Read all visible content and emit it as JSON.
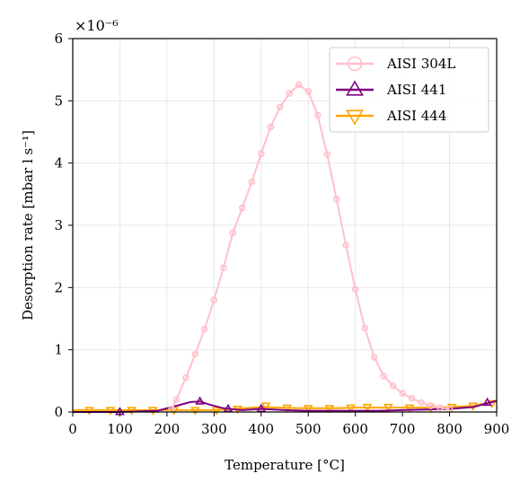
{
  "chart_data": {
    "type": "line",
    "title": "",
    "xlabel": "Temperature [°C]",
    "ylabel": "Desorption rate [mbar l s⁻¹]",
    "y_multiplier_label": "×10⁻⁶",
    "xlim": [
      0,
      900
    ],
    "ylim": [
      0,
      6
    ],
    "x_ticks": [
      0,
      100,
      200,
      300,
      400,
      500,
      600,
      700,
      800,
      900
    ],
    "y_ticks": [
      0,
      1,
      2,
      3,
      4,
      5,
      6
    ],
    "grid": true,
    "legend_position": "top-right",
    "series": [
      {
        "name": "AISI 304L",
        "color": "#ffc0cb",
        "marker": "circle",
        "x": [
          210,
          220,
          240,
          260,
          280,
          300,
          320,
          340,
          360,
          380,
          400,
          420,
          440,
          460,
          480,
          500,
          520,
          540,
          560,
          580,
          600,
          620,
          640,
          660,
          680,
          700,
          720,
          740,
          760,
          780,
          800
        ],
        "y": [
          0.05,
          0.2,
          0.55,
          0.93,
          1.33,
          1.8,
          2.32,
          2.88,
          3.28,
          3.7,
          4.15,
          4.58,
          4.9,
          5.12,
          5.26,
          5.15,
          4.77,
          4.14,
          3.42,
          2.68,
          1.97,
          1.35,
          0.88,
          0.58,
          0.42,
          0.3,
          0.22,
          0.15,
          0.1,
          0.07,
          0.05
        ]
      },
      {
        "name": "AISI 441",
        "color": "#800080",
        "marker": "triangle-up",
        "x": [
          0,
          100,
          180,
          220,
          250,
          270,
          290,
          320,
          360,
          400,
          450,
          500,
          550,
          600,
          650,
          700,
          750,
          800,
          850,
          880,
          900
        ],
        "y": [
          0.0,
          0.0,
          0.02,
          0.1,
          0.16,
          0.17,
          0.12,
          0.06,
          0.03,
          0.05,
          0.03,
          0.02,
          0.02,
          0.02,
          0.02,
          0.03,
          0.04,
          0.05,
          0.08,
          0.14,
          0.18
        ],
        "marker_x": [
          100,
          270,
          330,
          400,
          880
        ],
        "marker_y": [
          0.0,
          0.17,
          0.05,
          0.05,
          0.15
        ]
      },
      {
        "name": "AISI 444",
        "color": "#ffa500",
        "marker": "triangle-down",
        "x": [
          0,
          300,
          350,
          380,
          410,
          440,
          480,
          520,
          560,
          600,
          650,
          700,
          750,
          800,
          850,
          900
        ],
        "y": [
          0.03,
          0.03,
          0.05,
          0.07,
          0.08,
          0.07,
          0.06,
          0.06,
          0.06,
          0.07,
          0.07,
          0.07,
          0.07,
          0.08,
          0.1,
          0.17
        ],
        "marker_x": [
          35,
          80,
          125,
          170,
          215,
          260,
          305,
          350,
          410,
          455,
          500,
          545,
          590,
          625,
          670,
          715,
          760,
          805,
          850,
          890
        ],
        "marker_y": [
          0.03,
          0.03,
          0.03,
          0.03,
          0.03,
          0.03,
          0.03,
          0.05,
          0.1,
          0.07,
          0.06,
          0.06,
          0.07,
          0.08,
          0.08,
          0.07,
          0.07,
          0.08,
          0.1,
          0.14
        ]
      }
    ]
  }
}
